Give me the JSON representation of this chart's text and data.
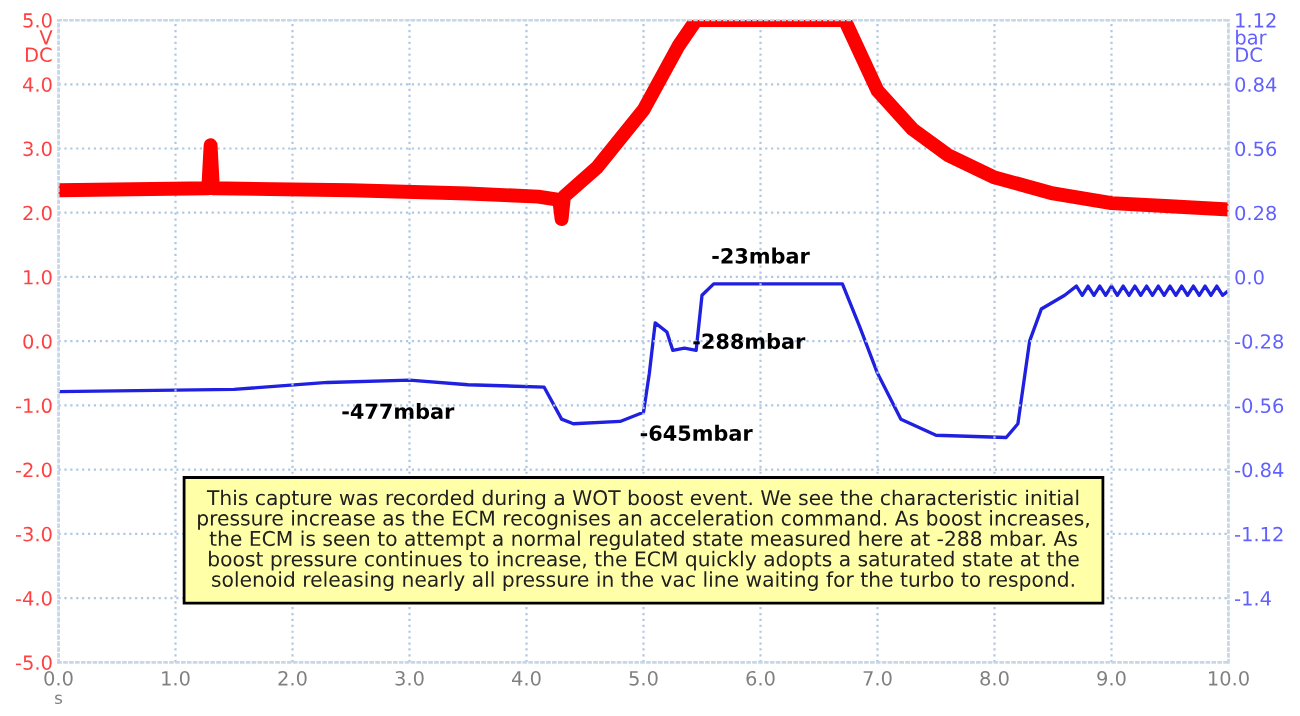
{
  "chart_data": {
    "type": "line",
    "ylabel": "V\nDC",
    "y2label": "bar\nDC",
    "xlabel": "s",
    "series": [
      {
        "color": "#ff0000",
        "x": [
          0,
          1.28,
          1.3,
          1.32,
          2.5,
          3.5,
          4.1,
          4.28,
          4.3,
          4.32,
          4.6,
          5.0,
          5.3,
          5.45,
          6.72,
          7.0,
          7.3,
          7.6,
          8.0,
          8.5,
          9.0,
          9.5,
          10.0
        ],
        "values": [
          2.35,
          2.38,
          3.05,
          2.38,
          2.35,
          2.3,
          2.25,
          2.2,
          1.9,
          2.25,
          2.7,
          3.6,
          4.6,
          5.0,
          5.0,
          3.9,
          3.3,
          2.9,
          2.55,
          2.3,
          2.15,
          2.1,
          2.05
        ]
      },
      {
        "color": "#2020e0",
        "axis": "y2",
        "x": [
          0,
          1.5,
          2.3,
          3.0,
          3.5,
          4.15,
          4.3,
          4.4,
          4.8,
          5.0,
          5.05,
          5.1,
          5.2,
          5.25,
          5.35,
          5.45,
          5.5,
          5.6,
          6.0,
          6.7,
          6.85,
          7.0,
          7.2,
          7.5,
          8.1,
          8.2,
          8.3,
          8.4,
          8.6,
          8.7,
          8.75,
          8.8,
          8.85,
          8.9,
          8.95,
          9.0,
          9.05,
          9.1,
          9.15,
          9.2,
          9.25,
          9.3,
          9.35,
          9.4,
          9.45,
          9.5,
          9.55,
          9.6,
          9.65,
          9.7,
          9.75,
          9.8,
          9.85,
          9.9,
          9.95,
          10.0
        ],
        "values": [
          -0.5,
          -0.49,
          -0.46,
          -0.45,
          -0.47,
          -0.48,
          -0.62,
          -0.64,
          -0.63,
          -0.59,
          -0.42,
          -0.2,
          -0.24,
          -0.32,
          -0.31,
          -0.32,
          -0.08,
          -0.03,
          -0.03,
          -0.03,
          -0.22,
          -0.42,
          -0.62,
          -0.69,
          -0.7,
          -0.64,
          -0.28,
          -0.14,
          -0.08,
          -0.04,
          -0.08,
          -0.04,
          -0.08,
          -0.04,
          -0.08,
          -0.04,
          -0.08,
          -0.04,
          -0.08,
          -0.04,
          -0.08,
          -0.04,
          -0.08,
          -0.04,
          -0.08,
          -0.04,
          -0.08,
          -0.04,
          -0.08,
          -0.04,
          -0.08,
          -0.04,
          -0.08,
          -0.04,
          -0.08,
          -0.06
        ]
      }
    ],
    "xlim": [
      0,
      10
    ],
    "xticks": [
      {
        "value": 0,
        "label": "0.0"
      },
      {
        "value": 1,
        "label": "1.0"
      },
      {
        "value": 2,
        "label": "2.0"
      },
      {
        "value": 3,
        "label": "3.0"
      },
      {
        "value": 4,
        "label": "4.0"
      },
      {
        "value": 5,
        "label": "5.0"
      },
      {
        "value": 6,
        "label": "6.0"
      },
      {
        "value": 7,
        "label": "7.0"
      },
      {
        "value": 8,
        "label": "8.0"
      },
      {
        "value": 9,
        "label": "9.0"
      },
      {
        "value": 10,
        "label": "10.0"
      }
    ],
    "ylim": [
      -5,
      5
    ],
    "yticks": [
      {
        "value": 5,
        "label": "5.0"
      },
      {
        "value": 4,
        "label": "4.0"
      },
      {
        "value": 3,
        "label": "3.0"
      },
      {
        "value": 2,
        "label": "2.0"
      },
      {
        "value": 1,
        "label": "1.0"
      },
      {
        "value": 0,
        "label": "0.0"
      },
      {
        "value": -1,
        "label": "-1.0"
      },
      {
        "value": -2,
        "label": "-2.0"
      },
      {
        "value": -3,
        "label": "-3.0"
      },
      {
        "value": -4,
        "label": "-4.0"
      },
      {
        "value": -5,
        "label": "-5.0"
      }
    ],
    "y2lim": [
      -1.68,
      1.12
    ],
    "y2ticks": [
      1.12,
      0.84,
      0.56,
      0.28,
      {
        "value": 0,
        "label": "0.0"
      },
      -0.28,
      -0.56,
      -0.84,
      -1.12,
      -1.4
    ],
    "grid": true,
    "annotations": [
      "-23mbar",
      "-288mbar",
      "-477mbar",
      "-645mbar",
      "This capture was recorded during a WOT boost event. We see the characteristic initial\npressure increase as the ECM recognises an acceleration command. As boost increases,\nthe ECM is seen to attempt a normal regulated state measured here at -288 mbar. As\nboost pressure continues to increase, the ECM quickly adopts a saturated state at the\nsolenoid releasing nearly all pressure in the vac line waiting for the turbo to respond."
    ]
  }
}
